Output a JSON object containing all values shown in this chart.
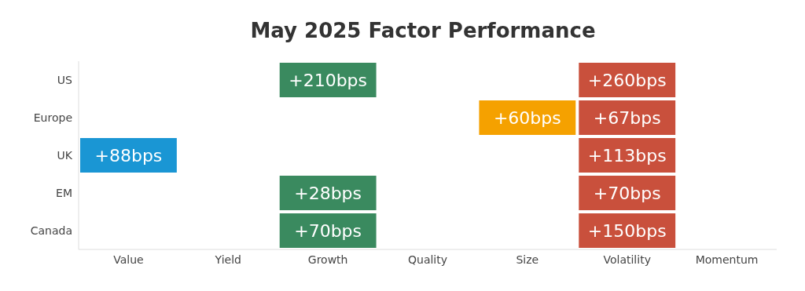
{
  "chart_data": {
    "type": "heatmap",
    "title": "May 2025 Factor Performance",
    "categories": [
      "Value",
      "Yield",
      "Growth",
      "Quality",
      "Size",
      "Volatility",
      "Momentum"
    ],
    "y_categories": [
      "US",
      "Europe",
      "UK",
      "EM",
      "Canada"
    ],
    "cells": [
      [
        null,
        null,
        210,
        null,
        null,
        260,
        null
      ],
      [
        null,
        null,
        null,
        null,
        60,
        67,
        null
      ],
      [
        88,
        null,
        null,
        null,
        null,
        113,
        null
      ],
      [
        null,
        null,
        28,
        null,
        null,
        70,
        null
      ],
      [
        null,
        null,
        70,
        null,
        null,
        150,
        null
      ]
    ],
    "cell_labels": [
      [
        null,
        null,
        "+210bps",
        null,
        null,
        "+260bps",
        null
      ],
      [
        null,
        null,
        null,
        null,
        "+60bps",
        "+67bps",
        null
      ],
      [
        "+88bps",
        null,
        null,
        null,
        null,
        "+113bps",
        null
      ],
      [
        null,
        null,
        "+28bps",
        null,
        null,
        "+70bps",
        null
      ],
      [
        null,
        null,
        "+70bps",
        null,
        null,
        "+150bps",
        null
      ]
    ],
    "colors": [
      [
        null,
        null,
        "#3a8a5f",
        null,
        null,
        "#c9503c",
        null
      ],
      [
        null,
        null,
        null,
        null,
        "#f5a100",
        "#c9503c",
        null
      ],
      [
        "#1a96d4",
        null,
        null,
        null,
        null,
        "#c9503c",
        null
      ],
      [
        null,
        null,
        "#3a8a5f",
        null,
        null,
        "#c9503c",
        null
      ],
      [
        null,
        null,
        "#3a8a5f",
        null,
        null,
        "#c9503c",
        null
      ]
    ]
  }
}
